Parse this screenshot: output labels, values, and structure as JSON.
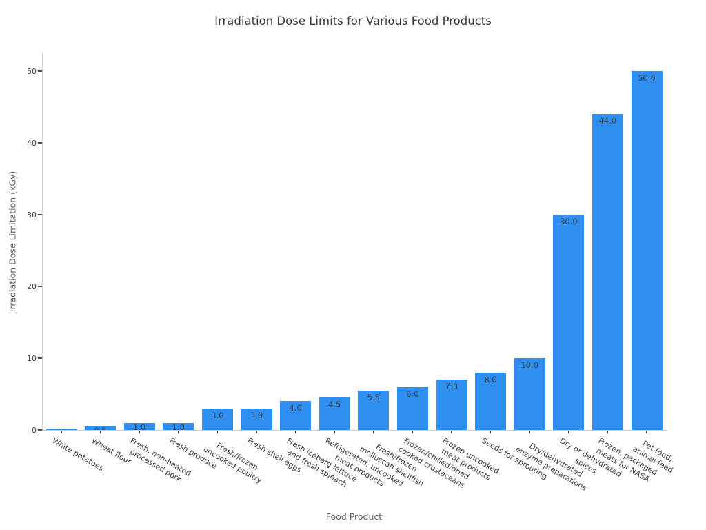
{
  "chart_data": {
    "type": "bar",
    "title": "Irradiation Dose Limits for Various Food Products",
    "xlabel": "Food Product",
    "ylabel": "Irradiation Dose Limitation (kGy)",
    "categories": [
      [
        "White potatoes"
      ],
      [
        "Wheat flour"
      ],
      [
        "Fresh, non-heated",
        "processed pork"
      ],
      [
        "Fresh produce"
      ],
      [
        "Fresh/frozen",
        "uncooked poultry"
      ],
      [
        "Fresh shell eggs"
      ],
      [
        "Fresh iceberg lettuce",
        "and fresh spinach"
      ],
      [
        "Refrigerated, uncooked",
        "meat products"
      ],
      [
        "Fresh/frozen",
        "molluscan shellfish"
      ],
      [
        "Frozen/chilled/dried",
        "cooked crustaceans"
      ],
      [
        "Frozen uncooked",
        "meat products"
      ],
      [
        "Seeds for sprouting"
      ],
      [
        "Dry/dehydrated",
        "enzyme preparations"
      ],
      [
        "Dry or dehydrated",
        "spices"
      ],
      [
        "Frozen, packaged",
        "meats for NASA"
      ],
      [
        "Pet food,",
        "animal feed"
      ]
    ],
    "values": [
      0.2,
      0.5,
      1.0,
      1.0,
      3.0,
      3.0,
      4.0,
      4.5,
      5.5,
      6.0,
      7.0,
      8.0,
      10.0,
      30.0,
      44.0,
      50.0
    ],
    "bar_value_labels": [
      "0.2",
      "0.5",
      "1.0",
      "1.0",
      "3.0",
      "3.0",
      "4.0",
      "4.5",
      "5.5",
      "6.0",
      "7.0",
      "8.0",
      "10.0",
      "30.0",
      "44.0",
      "50.0"
    ],
    "yticks": [
      0,
      10,
      20,
      30,
      40,
      50
    ],
    "ylim": [
      0,
      52.5
    ],
    "xtick_rotation_deg": 30,
    "grid": false,
    "legend": false,
    "colors": {
      "bar": "#2E8FF1",
      "bar_value_label": "#3A424C",
      "tick_label": "#3B3B3B",
      "axis_title": "#5F5F5F",
      "title": "#3A3A3A",
      "spine": "#CDCDCD",
      "tick_mark": "#444444",
      "background": "#FFFFFF"
    }
  }
}
